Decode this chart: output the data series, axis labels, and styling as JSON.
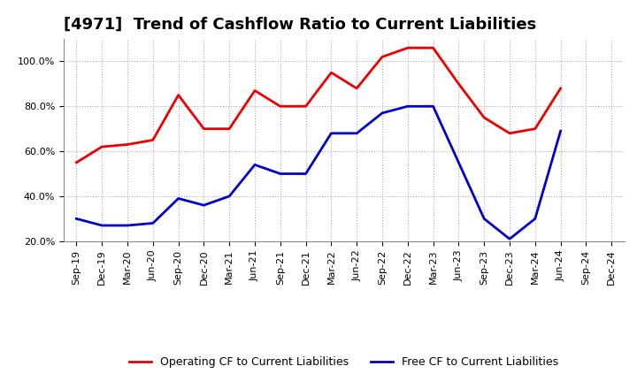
{
  "title": "[4971]  Trend of Cashflow Ratio to Current Liabilities",
  "labels": [
    "Sep-19",
    "Dec-19",
    "Mar-20",
    "Jun-20",
    "Sep-20",
    "Dec-20",
    "Mar-21",
    "Jun-21",
    "Sep-21",
    "Dec-21",
    "Mar-22",
    "Jun-22",
    "Sep-22",
    "Dec-22",
    "Mar-23",
    "Jun-23",
    "Sep-23",
    "Dec-23",
    "Mar-24",
    "Jun-24",
    "Sep-24",
    "Dec-24"
  ],
  "operating_cf": [
    55,
    62,
    63,
    65,
    85,
    70,
    70,
    87,
    80,
    80,
    95,
    88,
    102,
    106,
    106,
    90,
    75,
    68,
    70,
    88,
    null,
    null
  ],
  "free_cf": [
    30,
    27,
    27,
    28,
    39,
    36,
    40,
    54,
    50,
    50,
    68,
    68,
    77,
    80,
    80,
    55,
    30,
    21,
    30,
    69,
    null,
    null
  ],
  "operating_color": "#EE0000",
  "free_color": "#0000CC",
  "ylim_min": 20,
  "ylim_max": 110,
  "yticks": [
    20,
    40,
    60,
    80,
    100
  ],
  "ytick_labels": [
    "20.0%",
    "40.0%",
    "60.0%",
    "80.0%",
    "100.0%"
  ],
  "background_color": "#FFFFFF",
  "grid_color": "#AAAAAA",
  "legend_operating": "Operating CF to Current Liabilities",
  "legend_free": "Free CF to Current Liabilities",
  "title_fontsize": 13,
  "tick_fontsize": 8,
  "ytick_fontsize": 8,
  "legend_fontsize": 9,
  "linewidth": 2.0
}
